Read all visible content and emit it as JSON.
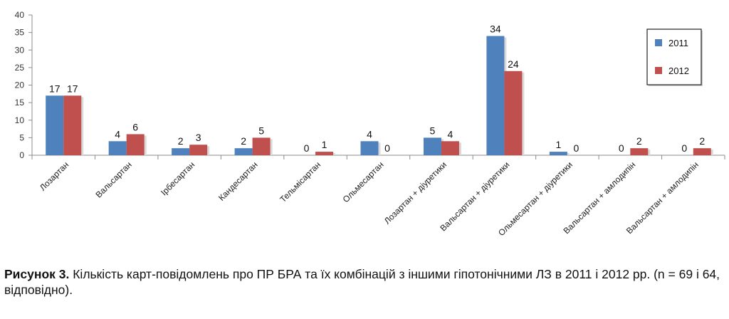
{
  "chart_data": {
    "type": "bar",
    "title": "",
    "xlabel": "",
    "ylabel": "",
    "ylim": [
      0,
      40
    ],
    "yticks": [
      0,
      5,
      10,
      15,
      20,
      25,
      30,
      35,
      40
    ],
    "grid": false,
    "legend_position": "top-right",
    "categories": [
      "Лозартан",
      "Вальсартан",
      "Ірбесартан",
      "Кандесартан",
      "Тельмісартан",
      "Ольмесартан",
      "Лозартан + діуретики",
      "Вальсартан + діуретики",
      "Ольмесартан + діуретики",
      "Вальсартан + амлодипін",
      "Вальсартан + амлодипін"
    ],
    "series": [
      {
        "name": "2011",
        "color": "#4f81bd",
        "values": [
          17,
          4,
          2,
          2,
          0,
          4,
          5,
          34,
          1,
          0,
          0
        ]
      },
      {
        "name": "2012",
        "color": "#c0504d",
        "values": [
          17,
          6,
          3,
          5,
          1,
          0,
          4,
          24,
          0,
          2,
          2
        ]
      }
    ]
  },
  "caption": {
    "label": "Рисунок 3.",
    "text": " Кількість карт-повідомлень про ПР БРА та їх комбінацій з іншими гіпотонічними ЛЗ в 2011 і 2012 рр. (n = 69 і 64, відповідно)."
  }
}
